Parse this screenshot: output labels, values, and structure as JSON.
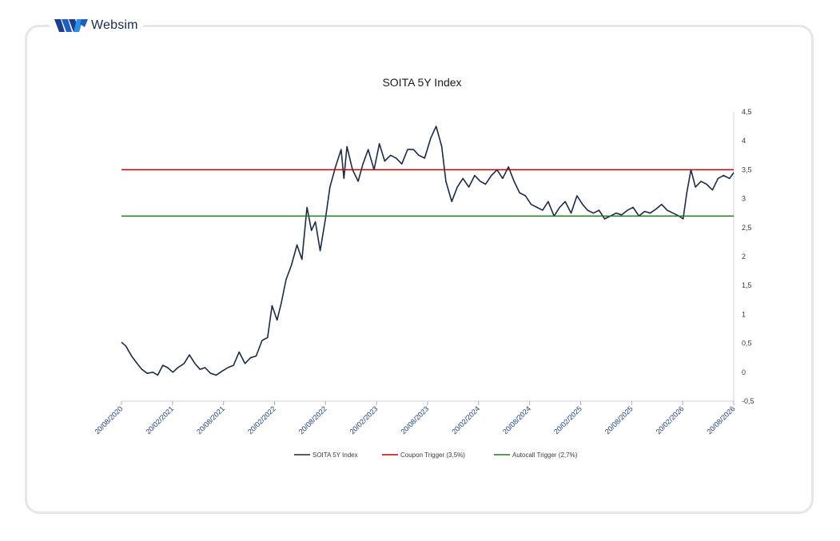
{
  "brand": {
    "name": "Websim",
    "logo_icon": "websim-w-logo"
  },
  "chart_data": {
    "type": "line",
    "title": "SOITA 5Y Index",
    "xlabel": "",
    "ylabel": "",
    "ylim": [
      -0.5,
      4.5
    ],
    "yticks": [
      "4,5",
      "4",
      "3,5",
      "3",
      "2,5",
      "2",
      "1,5",
      "1",
      "0,5",
      "0",
      "-0,5"
    ],
    "ytick_values": [
      4.5,
      4,
      3.5,
      3,
      2.5,
      2,
      1.5,
      1,
      0.5,
      0,
      -0.5
    ],
    "y_axis_side": "right",
    "xlim": [
      "2020-08-20",
      "2026-08-20"
    ],
    "xticks": [
      "20/08/2020",
      "20/02/2021",
      "20/08/2021",
      "20/02/2022",
      "20/08/2022",
      "20/02/2023",
      "20/08/2023",
      "20/02/2024",
      "20/08/2024",
      "20/02/2025",
      "20/08/2025",
      "20/02/2026",
      "20/08/2026"
    ],
    "grid": false,
    "legend_position": "bottom",
    "series": [
      {
        "name": "SOITA 5Y Index",
        "color": "#1c2b44",
        "x": [
          "2020-08-20",
          "2020-09-05",
          "2020-09-25",
          "2020-10-15",
          "2020-11-01",
          "2020-11-20",
          "2020-12-10",
          "2020-12-28",
          "2021-01-15",
          "2021-02-01",
          "2021-02-20",
          "2021-03-10",
          "2021-04-01",
          "2021-04-20",
          "2021-05-10",
          "2021-05-28",
          "2021-06-15",
          "2021-07-05",
          "2021-07-25",
          "2021-08-15",
          "2021-09-05",
          "2021-09-25",
          "2021-10-15",
          "2021-11-05",
          "2021-11-25",
          "2021-12-15",
          "2022-01-05",
          "2022-01-25",
          "2022-02-10",
          "2022-02-28",
          "2022-03-15",
          "2022-04-01",
          "2022-04-20",
          "2022-05-10",
          "2022-05-28",
          "2022-06-15",
          "2022-07-01",
          "2022-07-15",
          "2022-08-01",
          "2022-08-20",
          "2022-09-05",
          "2022-09-25",
          "2022-10-15",
          "2022-10-25",
          "2022-11-05",
          "2022-11-25",
          "2022-12-15",
          "2023-01-01",
          "2023-01-20",
          "2023-02-10",
          "2023-03-01",
          "2023-03-20",
          "2023-04-10",
          "2023-04-30",
          "2023-05-20",
          "2023-06-10",
          "2023-07-01",
          "2023-07-20",
          "2023-08-10",
          "2023-09-01",
          "2023-09-20",
          "2023-10-10",
          "2023-10-25",
          "2023-11-15",
          "2023-12-05",
          "2023-12-25",
          "2024-01-15",
          "2024-02-05",
          "2024-02-25",
          "2024-03-15",
          "2024-04-05",
          "2024-04-25",
          "2024-05-15",
          "2024-06-05",
          "2024-06-25",
          "2024-07-15",
          "2024-08-05",
          "2024-08-25",
          "2024-09-15",
          "2024-10-05",
          "2024-10-25",
          "2024-11-15",
          "2024-12-05",
          "2024-12-25",
          "2025-01-15",
          "2025-02-05",
          "2025-02-25",
          "2025-03-15",
          "2025-04-05",
          "2025-04-25",
          "2025-05-15",
          "2025-06-05",
          "2025-06-25",
          "2025-07-15",
          "2025-08-05",
          "2025-08-25",
          "2025-09-15",
          "2025-10-05",
          "2025-10-25",
          "2025-11-15",
          "2025-12-05",
          "2025-12-25",
          "2026-01-15",
          "2026-02-05",
          "2026-02-20",
          "2026-03-05",
          "2026-03-20",
          "2026-04-05",
          "2026-04-25",
          "2026-05-15",
          "2026-06-05",
          "2026-06-25",
          "2026-07-15",
          "2026-08-05",
          "2026-08-20"
        ],
        "y": [
          0.52,
          0.45,
          0.28,
          0.15,
          0.05,
          -0.02,
          0.0,
          -0.05,
          0.12,
          0.08,
          0.0,
          0.08,
          0.15,
          0.3,
          0.15,
          0.05,
          0.08,
          -0.02,
          -0.05,
          0.02,
          0.08,
          0.12,
          0.35,
          0.15,
          0.25,
          0.28,
          0.55,
          0.6,
          1.15,
          0.9,
          1.2,
          1.6,
          1.85,
          2.2,
          1.95,
          2.85,
          2.45,
          2.6,
          2.1,
          2.65,
          3.2,
          3.55,
          3.85,
          3.35,
          3.9,
          3.5,
          3.3,
          3.6,
          3.85,
          3.5,
          3.95,
          3.65,
          3.75,
          3.7,
          3.6,
          3.85,
          3.85,
          3.75,
          3.7,
          4.05,
          4.25,
          3.9,
          3.3,
          2.95,
          3.2,
          3.35,
          3.2,
          3.4,
          3.3,
          3.25,
          3.4,
          3.5,
          3.35,
          3.55,
          3.3,
          3.1,
          3.05,
          2.9,
          2.85,
          2.8,
          2.95,
          2.7,
          2.85,
          2.95,
          2.75,
          3.05,
          2.9,
          2.8,
          2.75,
          2.8,
          2.65,
          2.7,
          2.75,
          2.72,
          2.8,
          2.85,
          2.7,
          2.78,
          2.75,
          2.82,
          2.9,
          2.8,
          2.75,
          2.7,
          2.65,
          3.1,
          3.5,
          3.2,
          3.3,
          3.25,
          3.15,
          3.35,
          3.4,
          3.35,
          3.45
        ]
      },
      {
        "name": "Coupon Trigger (3,5%)",
        "color": "#c00000",
        "constant": 3.5
      },
      {
        "name": "Autocall Trigger (2,7%)",
        "color": "#1e7a1e",
        "constant": 2.7
      }
    ]
  }
}
